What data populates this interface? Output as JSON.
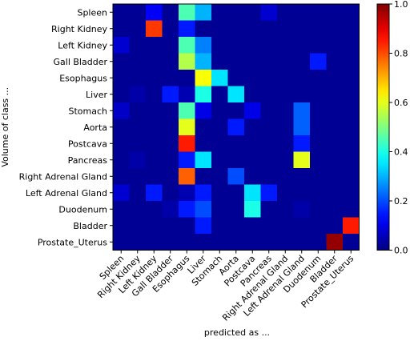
{
  "chart_data": {
    "type": "heatmap",
    "xlabel": "predicted as ...",
    "ylabel": "Volume of class ...",
    "classes": [
      "Spleen",
      "Right Kidney",
      "Left Kidney",
      "Gall Bladder",
      "Esophagus",
      "Liver",
      "Stomach",
      "Aorta",
      "Postcava",
      "Pancreas",
      "Right Adrenal Gland",
      "Left Adrenal Gland",
      "Duodenum",
      "Bladder",
      "Prostate_Uterus"
    ],
    "colorbar": {
      "ticks": [
        "0.0",
        "0.2",
        "0.4",
        "0.6",
        "0.8",
        "1.0"
      ],
      "min": 0.0,
      "max": 1.0,
      "colormap": "jet"
    },
    "values": [
      [
        0.02,
        0.02,
        0.12,
        0.02,
        0.45,
        0.3,
        0.02,
        0.02,
        0.02,
        0.08,
        0.02,
        0.02,
        0.02,
        0.02,
        0.02
      ],
      [
        0.02,
        0.02,
        0.82,
        0.02,
        0.15,
        0.02,
        0.02,
        0.02,
        0.02,
        0.02,
        0.02,
        0.02,
        0.02,
        0.02,
        0.02
      ],
      [
        0.08,
        0.02,
        0.02,
        0.02,
        0.45,
        0.25,
        0.02,
        0.02,
        0.02,
        0.02,
        0.02,
        0.02,
        0.02,
        0.02,
        0.02
      ],
      [
        0.02,
        0.02,
        0.02,
        0.02,
        0.55,
        0.3,
        0.02,
        0.02,
        0.02,
        0.02,
        0.02,
        0.02,
        0.15,
        0.02,
        0.02
      ],
      [
        0.02,
        0.02,
        0.02,
        0.02,
        0.02,
        0.62,
        0.35,
        0.02,
        0.02,
        0.02,
        0.02,
        0.02,
        0.02,
        0.02,
        0.02
      ],
      [
        0.02,
        0.04,
        0.02,
        0.15,
        0.05,
        0.4,
        0.02,
        0.35,
        0.02,
        0.02,
        0.02,
        0.02,
        0.02,
        0.02,
        0.02
      ],
      [
        0.07,
        0.02,
        0.02,
        0.02,
        0.45,
        0.1,
        0.02,
        0.02,
        0.1,
        0.02,
        0.02,
        0.22,
        0.02,
        0.02,
        0.02
      ],
      [
        0.02,
        0.02,
        0.02,
        0.02,
        0.6,
        0.02,
        0.02,
        0.15,
        0.02,
        0.02,
        0.02,
        0.22,
        0.02,
        0.02,
        0.02
      ],
      [
        0.02,
        0.02,
        0.02,
        0.02,
        0.85,
        0.02,
        0.02,
        0.02,
        0.02,
        0.02,
        0.02,
        0.15,
        0.02,
        0.02,
        0.02
      ],
      [
        0.02,
        0.04,
        0.02,
        0.02,
        0.15,
        0.35,
        0.02,
        0.02,
        0.02,
        0.02,
        0.02,
        0.6,
        0.02,
        0.02,
        0.02
      ],
      [
        0.02,
        0.02,
        0.02,
        0.02,
        0.78,
        0.02,
        0.02,
        0.2,
        0.02,
        0.02,
        0.02,
        0.02,
        0.02,
        0.02,
        0.02
      ],
      [
        0.08,
        0.02,
        0.15,
        0.02,
        0.05,
        0.15,
        0.02,
        0.02,
        0.35,
        0.15,
        0.02,
        0.02,
        0.02,
        0.02,
        0.02
      ],
      [
        0.02,
        0.02,
        0.02,
        0.04,
        0.15,
        0.2,
        0.02,
        0.02,
        0.4,
        0.02,
        0.02,
        0.04,
        0.02,
        0.02,
        0.02
      ],
      [
        0.02,
        0.02,
        0.02,
        0.02,
        0.02,
        0.15,
        0.02,
        0.02,
        0.02,
        0.02,
        0.02,
        0.02,
        0.02,
        0.02,
        0.85
      ],
      [
        0.02,
        0.02,
        0.02,
        0.02,
        0.02,
        0.02,
        0.02,
        0.02,
        0.02,
        0.02,
        0.02,
        0.02,
        0.02,
        0.98,
        0.02
      ]
    ]
  }
}
